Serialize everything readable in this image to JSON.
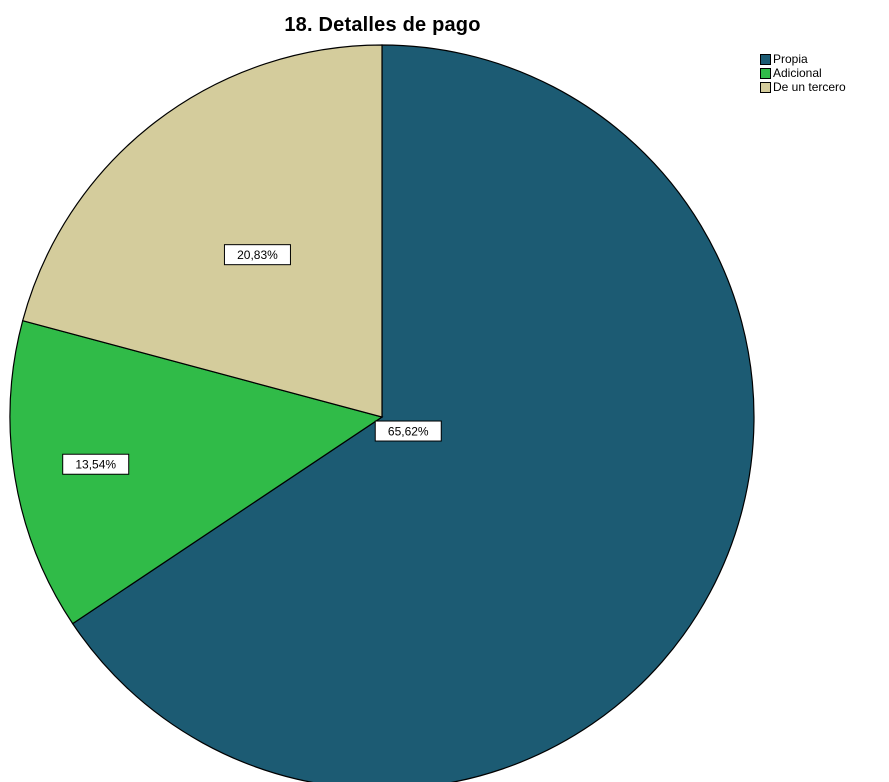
{
  "chart_data": {
    "type": "pie",
    "title": "18. Detalles de pago",
    "slices": [
      {
        "label": "Propia",
        "value": 65.62,
        "value_label": "65,62%",
        "color": "#1c5b73"
      },
      {
        "label": "Adicional",
        "value": 13.54,
        "value_label": "13,54%",
        "color": "#30bb48"
      },
      {
        "label": "De un tercero",
        "value": 20.83,
        "value_label": "20,83%",
        "color": "#d4cc9c"
      }
    ],
    "start_angle_deg": 0,
    "direction": "clockwise",
    "legend_position": "top-right",
    "outline_color": "#000000"
  }
}
